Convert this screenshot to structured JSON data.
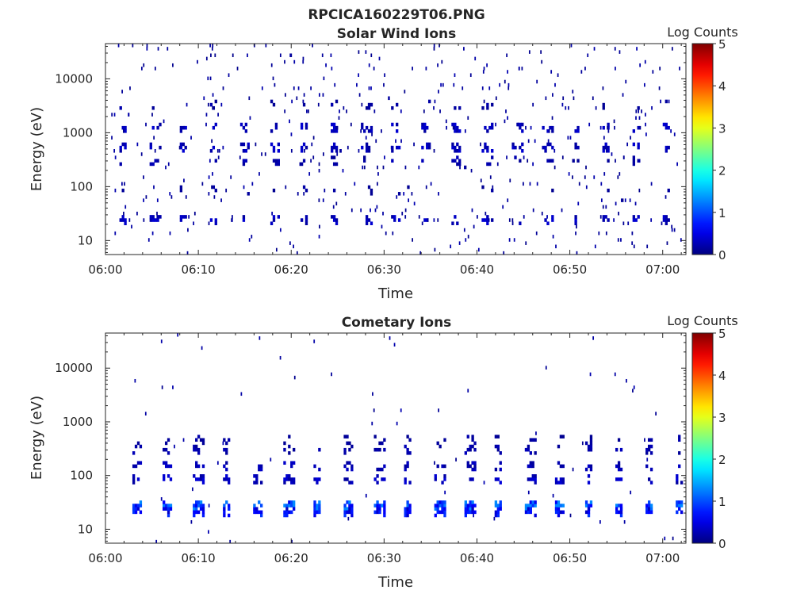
{
  "figure": {
    "title": "RPCICA160229T06.PNG"
  },
  "chart_data": [
    {
      "type": "heatmap",
      "title": "Solar Wind Ions",
      "xlabel": "Time",
      "ylabel": "Energy (eV)",
      "x_ticks": [
        "06:00",
        "06:10",
        "06:20",
        "06:30",
        "06:40",
        "06:50",
        "07:00"
      ],
      "xlim_minutes_after_0600": [
        0,
        62.5
      ],
      "ylim_eV": [
        5.5,
        45000
      ],
      "y_scale": "log",
      "y_ticks": [
        {
          "value": 10,
          "label": "10"
        },
        {
          "value": 100,
          "label": "100"
        },
        {
          "value": 1000,
          "label": "1000"
        },
        {
          "value": 10000,
          "label": "10000"
        }
      ],
      "colorbar": {
        "label": "Log Counts",
        "ticks": [
          "0",
          "1",
          "2",
          "3",
          "4",
          "5"
        ],
        "range": [
          0,
          5
        ],
        "colormap": "jet"
      },
      "pattern": {
        "sweep_period_min": 3.25,
        "sweep_start_min": 1.5,
        "bands_eV": [
          {
            "energy": 1200,
            "level": 0.3,
            "density": 0.55
          },
          {
            "energy": 550,
            "level": 0.3,
            "density": 0.6
          },
          {
            "energy": 300,
            "level": 0.2,
            "density": 0.25
          },
          {
            "energy": 24,
            "level": 0.3,
            "density": 0.55
          },
          {
            "energy": 3500,
            "level": 0.15,
            "density": 0.18
          },
          {
            "energy": 90,
            "level": 0.15,
            "density": 0.12
          }
        ],
        "sparse_density": 0.03,
        "max_level": 0.4
      }
    },
    {
      "type": "heatmap",
      "title": "Cometary Ions",
      "xlabel": "Time",
      "ylabel": "Energy (eV)",
      "x_ticks": [
        "06:00",
        "06:10",
        "06:20",
        "06:30",
        "06:40",
        "06:50",
        "07:00"
      ],
      "xlim_minutes_after_0600": [
        0,
        62.5
      ],
      "ylim_eV": [
        5.5,
        45000
      ],
      "y_scale": "log",
      "y_ticks": [
        {
          "value": 10,
          "label": "10"
        },
        {
          "value": 100,
          "label": "100"
        },
        {
          "value": 1000,
          "label": "1000"
        },
        {
          "value": 10000,
          "label": "10000"
        }
      ],
      "colorbar": {
        "label": "Log Counts",
        "ticks": [
          "0",
          "1",
          "2",
          "3",
          "4",
          "5"
        ],
        "range": [
          0,
          5
        ],
        "colormap": "jet"
      },
      "pattern": {
        "sweep_period_min": 3.25,
        "sweep_start_min": 2.9,
        "bands_eV": [
          {
            "energy": 28,
            "level": 1.0,
            "density": 0.9
          },
          {
            "energy": 20,
            "level": 0.6,
            "density": 0.8
          },
          {
            "energy": 80,
            "level": 0.3,
            "density": 0.55
          },
          {
            "energy": 150,
            "level": 0.25,
            "density": 0.5
          },
          {
            "energy": 300,
            "level": 0.2,
            "density": 0.4
          },
          {
            "energy": 480,
            "level": 0.15,
            "density": 0.3
          }
        ],
        "sparse_density": 0.004,
        "max_level": 1.3
      }
    }
  ]
}
